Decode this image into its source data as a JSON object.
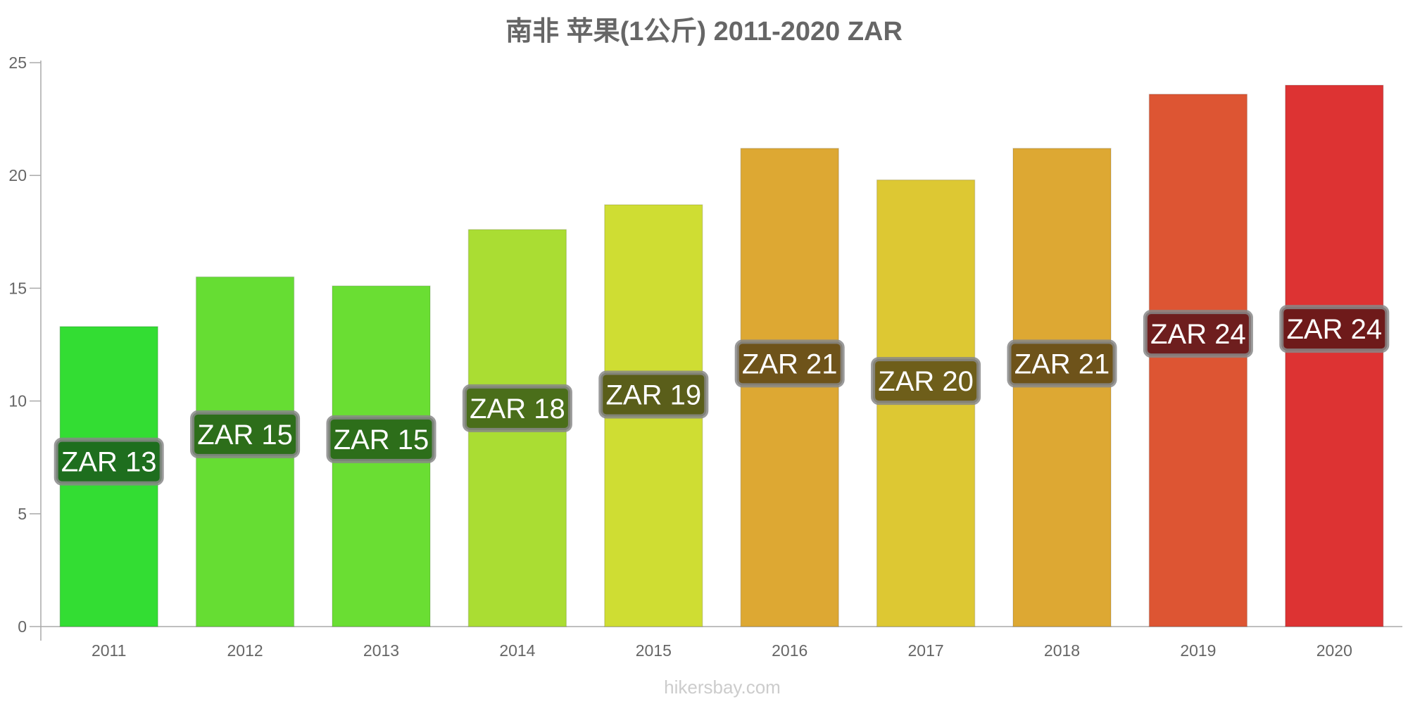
{
  "chart_data": {
    "type": "bar",
    "title": "南非 苹果(1公斤) 2011-2020 ZAR",
    "categories": [
      "2011",
      "2012",
      "2013",
      "2014",
      "2015",
      "2016",
      "2017",
      "2018",
      "2019",
      "2020"
    ],
    "values": [
      13.3,
      15.5,
      15.1,
      17.6,
      18.7,
      21.2,
      19.8,
      21.2,
      23.6,
      24.0
    ],
    "data_labels": [
      "ZAR 13",
      "ZAR 15",
      "ZAR 15",
      "ZAR 18",
      "ZAR 19",
      "ZAR 21",
      "ZAR 20",
      "ZAR 21",
      "ZAR 24",
      "ZAR 24"
    ],
    "bar_colors": [
      "#33dd33",
      "#66dd33",
      "#6ade33",
      "#aadd33",
      "#cfdd33",
      "#dda833",
      "#ddc833",
      "#dda833",
      "#dd5533",
      "#dd3333"
    ],
    "label_bg_colors": [
      "#1e6e1e",
      "#2d6e1a",
      "#2d6e1a",
      "#4a6e1a",
      "#5a5e1a",
      "#6e531a",
      "#6e5e1a",
      "#6e531a",
      "#6e1e1e",
      "#6e1a1a"
    ],
    "ylim": [
      0,
      25
    ],
    "yticks": [
      0,
      5,
      10,
      15,
      20,
      25
    ],
    "xlabel": "",
    "ylabel": "",
    "grid": false,
    "legend": "none"
  },
  "watermark": "hikersbay.com",
  "colors": {
    "title": "#666666",
    "axis": "#aaaaaa",
    "tick_label": "#666666",
    "watermark": "#cccccc"
  }
}
